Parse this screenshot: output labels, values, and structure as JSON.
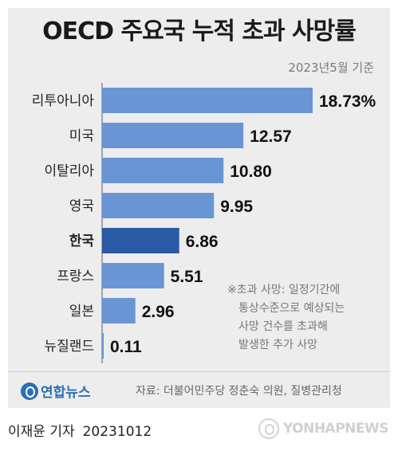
{
  "chart_data": {
    "type": "bar",
    "orientation": "horizontal",
    "title": "OECD 주요국 누적 초과 사망률",
    "subtitle": "2023년5월 기준",
    "categories": [
      "리투아니아",
      "미국",
      "이탈리아",
      "영국",
      "한국",
      "프랑스",
      "일본",
      "뉴질랜드"
    ],
    "values": [
      18.73,
      12.57,
      10.8,
      9.95,
      6.86,
      5.51,
      2.96,
      0.11
    ],
    "value_labels": [
      "18.73%",
      "12.57",
      "10.80",
      "9.95",
      "6.86",
      "5.51",
      "2.96",
      "0.11"
    ],
    "highlight_category": "한국",
    "xlim": [
      0,
      18.73
    ],
    "grid": false,
    "colors": {
      "bar": "#6a95d4",
      "highlight": "#2a5aa3",
      "axis": "#8a8a8a",
      "label": "#222222"
    }
  },
  "footnote": {
    "line1": "※초과 사망: 일정기간에",
    "line2": "통상수준으로 예상되는",
    "line3": "사망 건수를 초과해",
    "line4": "발생한 추가 사망"
  },
  "source": "자료: 더불어민주당 정춘숙 의원, 질병관리청",
  "logo": "연합뉴스",
  "reporter": "이재윤 기자",
  "date": "20231012",
  "watermark": "YONHAPNEWS"
}
